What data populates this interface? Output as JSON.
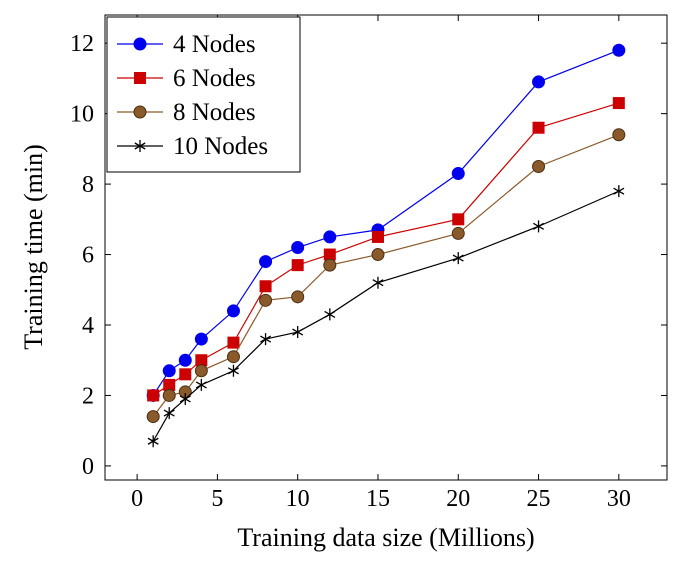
{
  "chart_data": {
    "type": "line",
    "xlabel": "Training data size (Millions)",
    "ylabel": "Training time (min)",
    "xlim": [
      -2,
      33
    ],
    "ylim": [
      -0.4,
      12.8
    ],
    "xticks": [
      0,
      5,
      10,
      15,
      20,
      25,
      30
    ],
    "yticks": [
      0,
      2,
      4,
      6,
      8,
      10,
      12
    ],
    "xtick_labels": [
      "0",
      "5",
      "10",
      "15",
      "20",
      "25",
      "30"
    ],
    "ytick_labels": [
      "0",
      "2",
      "4",
      "6",
      "8",
      "10",
      "12"
    ],
    "grid": false,
    "legend_position": "top-left",
    "x": [
      1,
      2,
      3,
      4,
      6,
      8,
      10,
      12,
      15,
      20,
      25,
      30
    ],
    "series": [
      {
        "name": "4 Nodes",
        "color": "#0000ee",
        "marker": "circle",
        "values": [
          2.0,
          2.7,
          3.0,
          3.6,
          4.4,
          5.8,
          6.2,
          6.5,
          6.7,
          8.3,
          10.9,
          11.8
        ]
      },
      {
        "name": "6 Nodes",
        "color": "#cc0000",
        "marker": "square",
        "values": [
          2.0,
          2.3,
          2.6,
          3.0,
          3.5,
          5.1,
          5.7,
          6.0,
          6.5,
          7.0,
          9.6,
          10.3
        ]
      },
      {
        "name": "8 Nodes",
        "color": "#8b5a2b",
        "marker": "circle-brown",
        "values": [
          1.4,
          2.0,
          2.1,
          2.7,
          3.1,
          4.7,
          4.8,
          5.7,
          6.0,
          6.6,
          8.5,
          9.4
        ]
      },
      {
        "name": "10 Nodes",
        "color": "#000000",
        "marker": "star",
        "values": [
          0.7,
          1.5,
          1.9,
          2.3,
          2.7,
          3.6,
          3.8,
          4.3,
          5.2,
          5.9,
          6.8,
          7.8
        ]
      }
    ]
  }
}
